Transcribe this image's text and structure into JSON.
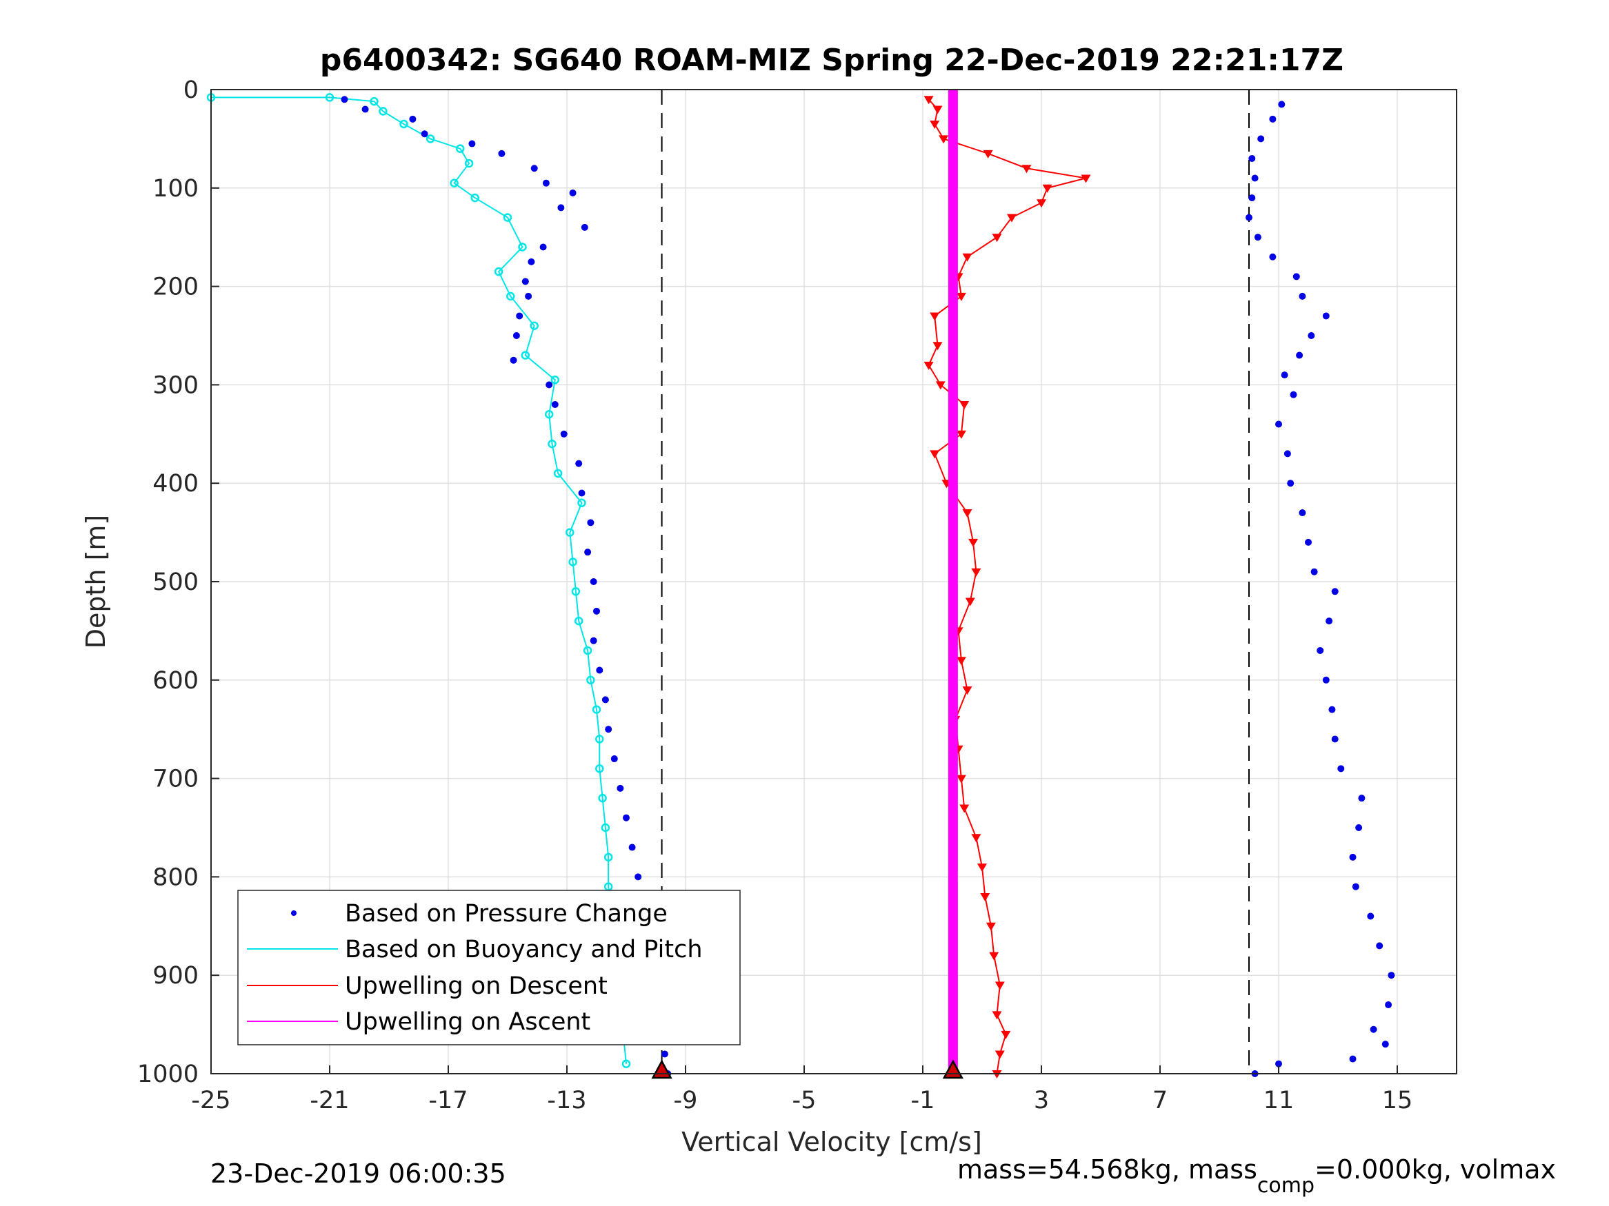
{
  "chart_data": {
    "type": "scatter",
    "title": "p6400342: SG640 ROAM-MIZ Spring 22-Dec-2019 22:21:17Z",
    "xlabel": "Vertical Velocity [cm/s]",
    "ylabel": "Depth [m]",
    "xlim": [
      -25,
      17
    ],
    "ylim": [
      1000,
      0
    ],
    "y_reversed": true,
    "grid": true,
    "xticks": [
      "-25",
      "-21",
      "-17",
      "-13",
      "-9",
      "-5",
      "-1",
      "3",
      "7",
      "11",
      "15"
    ],
    "xtick_values": [
      -25,
      -21,
      -17,
      -13,
      -9,
      -5,
      -1,
      3,
      7,
      11,
      15
    ],
    "yticks": [
      "0",
      "100",
      "200",
      "300",
      "400",
      "500",
      "600",
      "700",
      "800",
      "900",
      "1000"
    ],
    "ytick_values": [
      0,
      100,
      200,
      300,
      400,
      500,
      600,
      700,
      800,
      900,
      1000
    ],
    "reference_lines": [
      -9.8,
      10
    ],
    "legend_position": "bottom-left",
    "colors": {
      "pressure": "#0000e6",
      "buoyancy": "#00e5e5",
      "descent": "#ff0000",
      "ascent": "#ff00ff",
      "reference": "#000000",
      "apogee_marker": "#cc0000"
    },
    "series": [
      {
        "name": "Based on Pressure Change",
        "style": "dots",
        "descent": [
          [
            -20.5,
            10
          ],
          [
            -19.8,
            20
          ],
          [
            -18.2,
            30
          ],
          [
            -17.8,
            45
          ],
          [
            -16.2,
            55
          ],
          [
            -15.2,
            65
          ],
          [
            -14.1,
            80
          ],
          [
            -13.7,
            95
          ],
          [
            -12.8,
            105
          ],
          [
            -13.2,
            120
          ],
          [
            -12.4,
            140
          ],
          [
            -13.8,
            160
          ],
          [
            -14.2,
            175
          ],
          [
            -14.4,
            195
          ],
          [
            -14.3,
            210
          ],
          [
            -14.6,
            230
          ],
          [
            -14.7,
            250
          ],
          [
            -14.8,
            275
          ],
          [
            -13.6,
            300
          ],
          [
            -13.4,
            320
          ],
          [
            -13.1,
            350
          ],
          [
            -12.6,
            380
          ],
          [
            -12.5,
            410
          ],
          [
            -12.2,
            440
          ],
          [
            -12.3,
            470
          ],
          [
            -12.1,
            500
          ],
          [
            -12.0,
            530
          ],
          [
            -12.1,
            560
          ],
          [
            -11.9,
            590
          ],
          [
            -11.7,
            620
          ],
          [
            -11.6,
            650
          ],
          [
            -11.4,
            680
          ],
          [
            -11.2,
            710
          ],
          [
            -11.0,
            740
          ],
          [
            -10.8,
            770
          ],
          [
            -10.6,
            800
          ],
          [
            -10.4,
            830
          ],
          [
            -10.2,
            860
          ],
          [
            -10.0,
            890
          ],
          [
            -9.9,
            920
          ],
          [
            -9.8,
            950
          ],
          [
            -9.7,
            980
          ],
          [
            -9.6,
            1000
          ]
        ],
        "ascent": [
          [
            10.2,
            1000
          ],
          [
            11.0,
            990
          ],
          [
            13.5,
            985
          ],
          [
            14.6,
            970
          ],
          [
            14.2,
            955
          ],
          [
            14.7,
            930
          ],
          [
            14.8,
            900
          ],
          [
            14.4,
            870
          ],
          [
            14.1,
            840
          ],
          [
            13.6,
            810
          ],
          [
            13.5,
            780
          ],
          [
            13.7,
            750
          ],
          [
            13.8,
            720
          ],
          [
            13.1,
            690
          ],
          [
            12.9,
            660
          ],
          [
            12.8,
            630
          ],
          [
            12.6,
            600
          ],
          [
            12.4,
            570
          ],
          [
            12.7,
            540
          ],
          [
            12.9,
            510
          ],
          [
            12.2,
            490
          ],
          [
            12.0,
            460
          ],
          [
            11.8,
            430
          ],
          [
            11.4,
            400
          ],
          [
            11.3,
            370
          ],
          [
            11.0,
            340
          ],
          [
            11.5,
            310
          ],
          [
            11.2,
            290
          ],
          [
            11.7,
            270
          ],
          [
            12.1,
            250
          ],
          [
            12.6,
            230
          ],
          [
            11.8,
            210
          ],
          [
            11.6,
            190
          ],
          [
            10.8,
            170
          ],
          [
            10.3,
            150
          ],
          [
            10.0,
            130
          ],
          [
            10.1,
            110
          ],
          [
            10.2,
            90
          ],
          [
            10.1,
            70
          ],
          [
            10.4,
            50
          ],
          [
            10.8,
            30
          ],
          [
            11.1,
            15
          ]
        ]
      },
      {
        "name": "Based on Buoyancy and Pitch",
        "style": "line-markers",
        "descent": [
          [
            -25,
            8
          ],
          [
            -21,
            8
          ],
          [
            -19.5,
            12
          ],
          [
            -19.2,
            22
          ],
          [
            -18.5,
            35
          ],
          [
            -17.6,
            50
          ],
          [
            -16.6,
            60
          ],
          [
            -16.3,
            75
          ],
          [
            -16.8,
            95
          ],
          [
            -16.1,
            110
          ],
          [
            -15.0,
            130
          ],
          [
            -14.5,
            160
          ],
          [
            -15.3,
            185
          ],
          [
            -14.9,
            210
          ],
          [
            -14.1,
            240
          ],
          [
            -14.4,
            270
          ],
          [
            -13.4,
            295
          ],
          [
            -13.6,
            330
          ],
          [
            -13.5,
            360
          ],
          [
            -13.3,
            390
          ],
          [
            -12.5,
            420
          ],
          [
            -12.9,
            450
          ],
          [
            -12.8,
            480
          ],
          [
            -12.7,
            510
          ],
          [
            -12.6,
            540
          ],
          [
            -12.3,
            570
          ],
          [
            -12.2,
            600
          ],
          [
            -12.0,
            630
          ],
          [
            -11.9,
            660
          ],
          [
            -11.9,
            690
          ],
          [
            -11.8,
            720
          ],
          [
            -11.7,
            750
          ],
          [
            -11.6,
            780
          ],
          [
            -11.6,
            810
          ],
          [
            -11.5,
            840
          ],
          [
            -11.4,
            870
          ],
          [
            -11.3,
            900
          ],
          [
            -11.3,
            930
          ],
          [
            -11.1,
            960
          ],
          [
            -11.0,
            990
          ]
        ],
        "ascent": []
      },
      {
        "name": "Upwelling on Descent",
        "style": "triangles-down",
        "descent": [
          [
            -0.8,
            10
          ],
          [
            -0.5,
            20
          ],
          [
            -0.6,
            35
          ],
          [
            -0.3,
            50
          ],
          [
            1.2,
            65
          ],
          [
            2.5,
            80
          ],
          [
            4.5,
            90
          ],
          [
            3.2,
            100
          ],
          [
            3.0,
            115
          ],
          [
            2.0,
            130
          ],
          [
            1.5,
            150
          ],
          [
            0.5,
            170
          ],
          [
            0.2,
            190
          ],
          [
            0.3,
            210
          ],
          [
            -0.6,
            230
          ],
          [
            -0.5,
            260
          ],
          [
            -0.8,
            280
          ],
          [
            -0.4,
            300
          ],
          [
            0.4,
            320
          ],
          [
            0.3,
            350
          ],
          [
            -0.6,
            370
          ],
          [
            -0.2,
            400
          ],
          [
            0.5,
            430
          ],
          [
            0.7,
            460
          ],
          [
            0.8,
            490
          ],
          [
            0.6,
            520
          ],
          [
            0.2,
            550
          ],
          [
            0.3,
            580
          ],
          [
            0.5,
            610
          ],
          [
            0.1,
            640
          ],
          [
            0.2,
            670
          ],
          [
            0.3,
            700
          ],
          [
            0.4,
            730
          ],
          [
            0.8,
            760
          ],
          [
            1.0,
            790
          ],
          [
            1.1,
            820
          ],
          [
            1.3,
            850
          ],
          [
            1.4,
            880
          ],
          [
            1.6,
            910
          ],
          [
            1.5,
            940
          ],
          [
            1.8,
            960
          ],
          [
            1.6,
            980
          ],
          [
            1.5,
            1000
          ]
        ],
        "ascent": []
      },
      {
        "name": "Upwelling on Ascent",
        "style": "thick-line",
        "descent": [],
        "ascent": [
          [
            0.02,
            0
          ],
          [
            0.02,
            1000
          ]
        ]
      }
    ]
  },
  "legend": {
    "items": [
      {
        "label": "Based on Pressure Change"
      },
      {
        "label": "Based on Buoyancy and Pitch"
      },
      {
        "label": "Upwelling on Descent"
      },
      {
        "label": "Upwelling on Ascent"
      }
    ]
  },
  "footer": {
    "timestamp": "23-Dec-2019 06:00:35",
    "mass_prefix": "mass=54.568kg, mass",
    "mass_sub": "comp",
    "mass_suffix": "=0.000kg, volmax"
  }
}
